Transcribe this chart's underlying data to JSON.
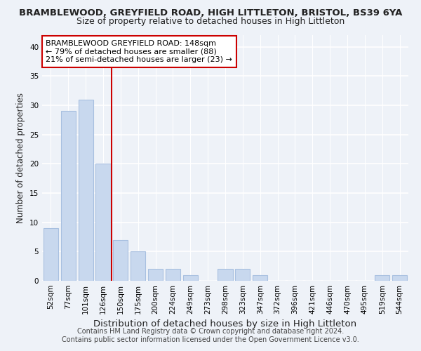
{
  "title": "BRAMBLEWOOD, GREYFIELD ROAD, HIGH LITTLETON, BRISTOL, BS39 6YA",
  "subtitle": "Size of property relative to detached houses in High Littleton",
  "xlabel": "Distribution of detached houses by size in High Littleton",
  "ylabel": "Number of detached properties",
  "footer_line1": "Contains HM Land Registry data © Crown copyright and database right 2024.",
  "footer_line2": "Contains public sector information licensed under the Open Government Licence v3.0.",
  "bar_labels": [
    "52sqm",
    "77sqm",
    "101sqm",
    "126sqm",
    "150sqm",
    "175sqm",
    "200sqm",
    "224sqm",
    "249sqm",
    "273sqm",
    "298sqm",
    "323sqm",
    "347sqm",
    "372sqm",
    "396sqm",
    "421sqm",
    "446sqm",
    "470sqm",
    "495sqm",
    "519sqm",
    "544sqm"
  ],
  "bar_values": [
    9,
    29,
    31,
    20,
    7,
    5,
    2,
    2,
    1,
    0,
    2,
    2,
    1,
    0,
    0,
    0,
    0,
    0,
    0,
    1,
    1
  ],
  "bar_color": "#c8d8ee",
  "bar_edge_color": "#a8c0e0",
  "vline_x_index": 4,
  "vline_color": "#cc0000",
  "annotation_text": "BRAMBLEWOOD GREYFIELD ROAD: 148sqm\n← 79% of detached houses are smaller (88)\n21% of semi-detached houses are larger (23) →",
  "annotation_box_color": "white",
  "annotation_box_edge_color": "#cc0000",
  "ylim": [
    0,
    42
  ],
  "yticks": [
    0,
    5,
    10,
    15,
    20,
    25,
    30,
    35,
    40
  ],
  "background_color": "#eef2f8",
  "plot_background_color": "#eef2f8",
  "grid_color": "white",
  "title_fontsize": 9.5,
  "subtitle_fontsize": 9,
  "xlabel_fontsize": 9.5,
  "ylabel_fontsize": 8.5,
  "tick_fontsize": 7.5,
  "annotation_fontsize": 8,
  "footer_fontsize": 7
}
